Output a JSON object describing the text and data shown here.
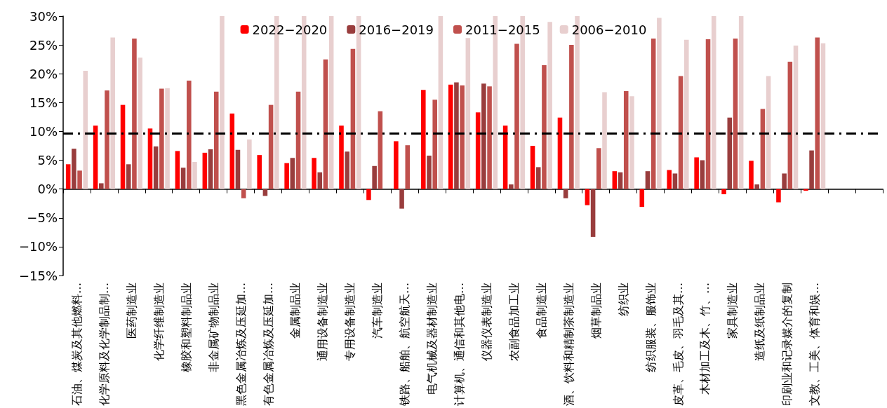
{
  "chart_data": {
    "type": "bar",
    "categories": [
      "石油、煤炭及其他燃料…",
      "化学原料及化学制品制…",
      "医药制造业",
      "化学纤维制造业",
      "橡胶和塑料制品业",
      "非金属矿物制品业",
      "黑色金属冶炼及压延加…",
      "有色金属冶炼及压延加…",
      "金属制品业",
      "通用设备制造业",
      "专用设备制造业",
      "汽车制造业",
      "铁路、船舶、航空航天…",
      "电气机械及器材制造业",
      "计算机、通信和其他电…",
      "仪器仪表制造业",
      "农副食品加工业",
      "食品制造业",
      "酒、饮料和精制茶制造业",
      "烟草制品业",
      "纺织业",
      "纺织服装、服饰业",
      "皮革、毛皮、羽毛及其…",
      "木材加工及木、竹、…",
      "家具制造业",
      "造纸及纸制品业",
      "印刷业和记录媒介的复制",
      "文教、工美、体育和娱…",
      null,
      null
    ],
    "series": [
      {
        "name": "2022−2020",
        "color": "#ff0000",
        "values": [
          4.3,
          11.0,
          14.6,
          10.5,
          6.6,
          6.3,
          13.1,
          5.9,
          4.5,
          5.4,
          11.0,
          -1.9,
          8.3,
          17.2,
          18.1,
          13.3,
          11.0,
          7.5,
          12.4,
          -2.8,
          3.1,
          -3.1,
          3.3,
          5.5,
          -0.9,
          4.9,
          -2.3,
          -0.3,
          null,
          null
        ]
      },
      {
        "name": "2016−2019",
        "color": "#993d3d",
        "values": [
          7.0,
          1.0,
          4.3,
          7.4,
          3.7,
          6.9,
          6.8,
          -1.2,
          5.4,
          2.9,
          6.5,
          4.0,
          -3.4,
          5.8,
          18.5,
          18.3,
          0.8,
          3.8,
          -1.6,
          -8.3,
          2.9,
          3.1,
          2.7,
          5.0,
          12.4,
          0.8,
          2.7,
          6.7,
          null,
          null
        ]
      },
      {
        "name": "2011−2015",
        "color": "#c0504d",
        "values": [
          3.2,
          17.1,
          26.1,
          17.4,
          18.8,
          16.9,
          -1.6,
          14.6,
          16.9,
          22.5,
          24.3,
          13.5,
          7.6,
          15.5,
          18.0,
          17.8,
          25.2,
          21.5,
          25.0,
          7.1,
          17.0,
          26.1,
          19.6,
          26.0,
          26.1,
          13.9,
          22.1,
          26.3,
          null,
          null
        ]
      },
      {
        "name": "2006−2010",
        "color": "#e8cfcf",
        "values": [
          20.5,
          26.3,
          22.8,
          17.5,
          4.7,
          30,
          8.6,
          30,
          30,
          30,
          30,
          null,
          null,
          30,
          26.2,
          30,
          30,
          29.0,
          30,
          16.8,
          16.1,
          29.7,
          25.9,
          30,
          30,
          19.6,
          24.9,
          25.3,
          null,
          null
        ]
      }
    ],
    "ylim": [
      -15,
      30
    ],
    "yticks": [
      {
        "value": -15,
        "label": "−15%"
      },
      {
        "value": -10,
        "label": "−10%"
      },
      {
        "value": -5,
        "label": "−5%"
      },
      {
        "value": 0,
        "label": "0%"
      },
      {
        "value": 5,
        "label": "5%"
      },
      {
        "value": 10,
        "label": "10%"
      },
      {
        "value": 15,
        "label": "15%"
      },
      {
        "value": 20,
        "label": "20%"
      },
      {
        "value": 25,
        "label": "25%"
      },
      {
        "value": 30,
        "label": "30%"
      }
    ],
    "ref_lines": [
      {
        "axis": "y",
        "value": 9.6,
        "color": "#000000",
        "line_style": "dashdot"
      }
    ],
    "legend": "top"
  }
}
